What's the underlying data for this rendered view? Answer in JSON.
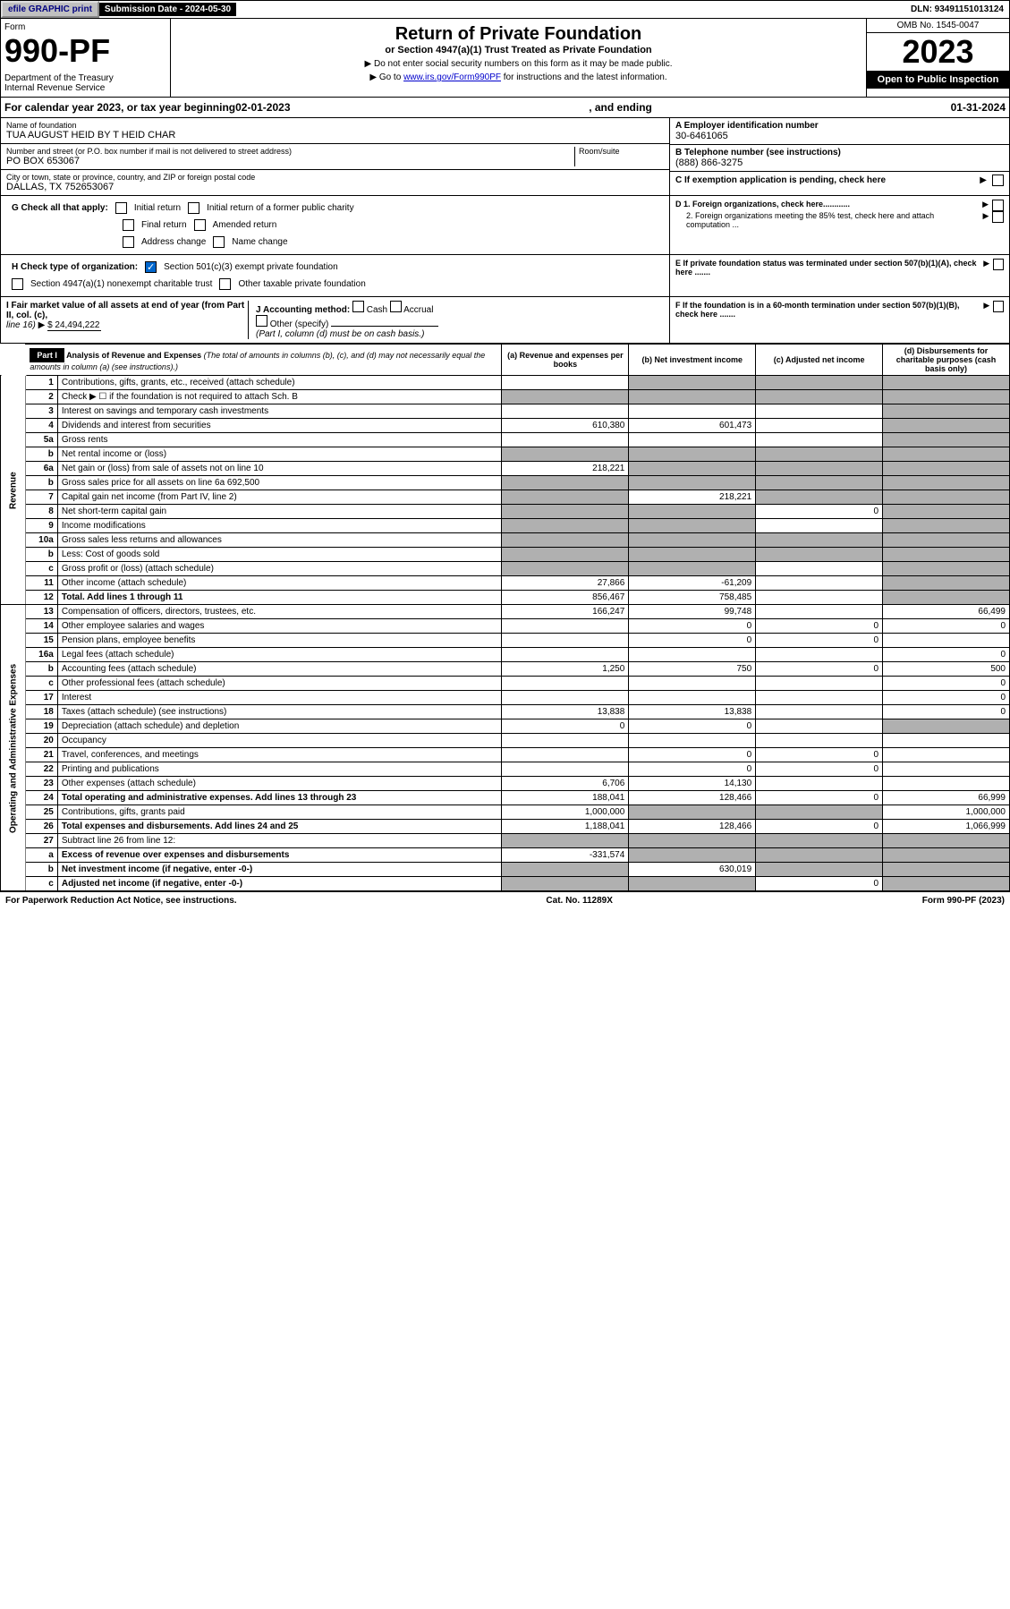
{
  "top": {
    "efile": "efile GRAPHIC print",
    "sub_date_label": "Submission Date - 2024-05-30",
    "dln": "DLN: 93491151013124"
  },
  "header": {
    "form_word": "Form",
    "form_no": "990-PF",
    "dept": "Department of the Treasury\nInternal Revenue Service",
    "title": "Return of Private Foundation",
    "subtitle": "or Section 4947(a)(1) Trust Treated as Private Foundation",
    "instr1": "Do not enter social security numbers on this form as it may be made public.",
    "instr2_pre": "Go to ",
    "instr2_link": "www.irs.gov/Form990PF",
    "instr2_post": " for instructions and the latest information.",
    "omb": "OMB No. 1545-0047",
    "year": "2023",
    "open": "Open to Public Inspection"
  },
  "cal": {
    "prefix": "For calendar year 2023, or tax year beginning ",
    "begin": "02-01-2023",
    "mid": ", and ending ",
    "end": "01-31-2024"
  },
  "org": {
    "name_label": "Name of foundation",
    "name": "TUA AUGUST HEID BY T HEID CHAR",
    "addr_label": "Number and street (or P.O. box number if mail is not delivered to street address)",
    "addr": "PO BOX 653067",
    "room_label": "Room/suite",
    "city_label": "City or town, state or province, country, and ZIP or foreign postal code",
    "city": "DALLAS, TX  752653067",
    "ein_label": "A Employer identification number",
    "ein": "30-6461065",
    "phone_label": "B Telephone number (see instructions)",
    "phone": "(888) 866-3275",
    "c_label": "C If exemption application is pending, check here",
    "d1": "D 1. Foreign organizations, check here............",
    "d2": "2. Foreign organizations meeting the 85% test, check here and attach computation ...",
    "e": "E If private foundation status was terminated under section 507(b)(1)(A), check here .......",
    "f": "F If the foundation is in a 60-month termination under section 507(b)(1)(B), check here ......."
  },
  "g": {
    "label": "G Check all that apply:",
    "opts": [
      "Initial return",
      "Final return",
      "Address change",
      "Initial return of a former public charity",
      "Amended return",
      "Name change"
    ]
  },
  "h": {
    "label": "H Check type of organization:",
    "opt1": "Section 501(c)(3) exempt private foundation",
    "opt2": "Section 4947(a)(1) nonexempt charitable trust",
    "opt3": "Other taxable private foundation"
  },
  "i": {
    "label": "I Fair market value of all assets at end of year (from Part II, col. (c),",
    "line16": "line 16)",
    "val": "$  24,494,222"
  },
  "j": {
    "label": "J Accounting method:",
    "cash": "Cash",
    "accrual": "Accrual",
    "other": "Other (specify)",
    "note": "(Part I, column (d) must be on cash basis.)"
  },
  "part1": {
    "label": "Part I",
    "title": "Analysis of Revenue and Expenses",
    "note": "(The total of amounts in columns (b), (c), and (d) may not necessarily equal the amounts in column (a) (see instructions).)",
    "cols": {
      "a": "(a) Revenue and expenses per books",
      "b": "(b) Net investment income",
      "c": "(c) Adjusted net income",
      "d": "(d) Disbursements for charitable purposes (cash basis only)"
    }
  },
  "rev_label": "Revenue",
  "exp_label": "Operating and Administrative Expenses",
  "rows": [
    {
      "n": "1",
      "d": "Contributions, gifts, grants, etc., received (attach schedule)",
      "a": "",
      "b": "",
      "c": "",
      "dd": "",
      "shade_b": true,
      "shade_c": true,
      "shade_d": true
    },
    {
      "n": "2",
      "d": "Check ▶ ☐ if the foundation is not required to attach Sch. B",
      "a": "",
      "b": "",
      "c": "",
      "dd": "",
      "shade_a": true,
      "shade_b": true,
      "shade_c": true,
      "shade_d": true
    },
    {
      "n": "3",
      "d": "Interest on savings and temporary cash investments",
      "a": "",
      "b": "",
      "c": "",
      "dd": "",
      "shade_d": true
    },
    {
      "n": "4",
      "d": "Dividends and interest from securities",
      "a": "610,380",
      "b": "601,473",
      "c": "",
      "dd": "",
      "shade_d": true
    },
    {
      "n": "5a",
      "d": "Gross rents",
      "a": "",
      "b": "",
      "c": "",
      "dd": "",
      "shade_d": true
    },
    {
      "n": "b",
      "d": "Net rental income or (loss)",
      "a": "",
      "b": "",
      "c": "",
      "dd": "",
      "shade_a": true,
      "shade_b": true,
      "shade_c": true,
      "shade_d": true
    },
    {
      "n": "6a",
      "d": "Net gain or (loss) from sale of assets not on line 10",
      "a": "218,221",
      "b": "",
      "c": "",
      "dd": "",
      "shade_b": true,
      "shade_c": true,
      "shade_d": true
    },
    {
      "n": "b",
      "d": "Gross sales price for all assets on line 6a            692,500",
      "a": "",
      "b": "",
      "c": "",
      "dd": "",
      "shade_a": true,
      "shade_b": true,
      "shade_c": true,
      "shade_d": true
    },
    {
      "n": "7",
      "d": "Capital gain net income (from Part IV, line 2)",
      "a": "",
      "b": "218,221",
      "c": "",
      "dd": "",
      "shade_a": true,
      "shade_c": true,
      "shade_d": true
    },
    {
      "n": "8",
      "d": "Net short-term capital gain",
      "a": "",
      "b": "",
      "c": "0",
      "dd": "",
      "shade_a": true,
      "shade_b": true,
      "shade_d": true
    },
    {
      "n": "9",
      "d": "Income modifications",
      "a": "",
      "b": "",
      "c": "",
      "dd": "",
      "shade_a": true,
      "shade_b": true,
      "shade_d": true
    },
    {
      "n": "10a",
      "d": "Gross sales less returns and allowances",
      "a": "",
      "b": "",
      "c": "",
      "dd": "",
      "shade_a": true,
      "shade_b": true,
      "shade_c": true,
      "shade_d": true
    },
    {
      "n": "b",
      "d": "Less: Cost of goods sold",
      "a": "",
      "b": "",
      "c": "",
      "dd": "",
      "shade_a": true,
      "shade_b": true,
      "shade_c": true,
      "shade_d": true
    },
    {
      "n": "c",
      "d": "Gross profit or (loss) (attach schedule)",
      "a": "",
      "b": "",
      "c": "",
      "dd": "",
      "shade_a": true,
      "shade_b": true,
      "shade_d": true
    },
    {
      "n": "11",
      "d": "Other income (attach schedule)",
      "a": "27,866",
      "b": "-61,209",
      "c": "",
      "dd": "",
      "shade_d": true
    },
    {
      "n": "12",
      "d": "Total. Add lines 1 through 11",
      "a": "856,467",
      "b": "758,485",
      "c": "",
      "dd": "",
      "bold": true,
      "shade_d": true
    },
    {
      "n": "13",
      "d": "Compensation of officers, directors, trustees, etc.",
      "a": "166,247",
      "b": "99,748",
      "c": "",
      "dd": "66,499"
    },
    {
      "n": "14",
      "d": "Other employee salaries and wages",
      "a": "",
      "b": "0",
      "c": "0",
      "dd": "0"
    },
    {
      "n": "15",
      "d": "Pension plans, employee benefits",
      "a": "",
      "b": "0",
      "c": "0",
      "dd": ""
    },
    {
      "n": "16a",
      "d": "Legal fees (attach schedule)",
      "a": "",
      "b": "",
      "c": "",
      "dd": "0"
    },
    {
      "n": "b",
      "d": "Accounting fees (attach schedule)",
      "a": "1,250",
      "b": "750",
      "c": "0",
      "dd": "500"
    },
    {
      "n": "c",
      "d": "Other professional fees (attach schedule)",
      "a": "",
      "b": "",
      "c": "",
      "dd": "0"
    },
    {
      "n": "17",
      "d": "Interest",
      "a": "",
      "b": "",
      "c": "",
      "dd": "0"
    },
    {
      "n": "18",
      "d": "Taxes (attach schedule) (see instructions)",
      "a": "13,838",
      "b": "13,838",
      "c": "",
      "dd": "0"
    },
    {
      "n": "19",
      "d": "Depreciation (attach schedule) and depletion",
      "a": "0",
      "b": "0",
      "c": "",
      "dd": "",
      "shade_d": true
    },
    {
      "n": "20",
      "d": "Occupancy",
      "a": "",
      "b": "",
      "c": "",
      "dd": ""
    },
    {
      "n": "21",
      "d": "Travel, conferences, and meetings",
      "a": "",
      "b": "0",
      "c": "0",
      "dd": ""
    },
    {
      "n": "22",
      "d": "Printing and publications",
      "a": "",
      "b": "0",
      "c": "0",
      "dd": ""
    },
    {
      "n": "23",
      "d": "Other expenses (attach schedule)",
      "a": "6,706",
      "b": "14,130",
      "c": "",
      "dd": ""
    },
    {
      "n": "24",
      "d": "Total operating and administrative expenses. Add lines 13 through 23",
      "a": "188,041",
      "b": "128,466",
      "c": "0",
      "dd": "66,999",
      "bold": true
    },
    {
      "n": "25",
      "d": "Contributions, gifts, grants paid",
      "a": "1,000,000",
      "b": "",
      "c": "",
      "dd": "1,000,000",
      "shade_b": true,
      "shade_c": true
    },
    {
      "n": "26",
      "d": "Total expenses and disbursements. Add lines 24 and 25",
      "a": "1,188,041",
      "b": "128,466",
      "c": "0",
      "dd": "1,066,999",
      "bold": true
    },
    {
      "n": "27",
      "d": "Subtract line 26 from line 12:",
      "a": "",
      "b": "",
      "c": "",
      "dd": "",
      "shade_a": true,
      "shade_b": true,
      "shade_c": true,
      "shade_d": true
    },
    {
      "n": "a",
      "d": "Excess of revenue over expenses and disbursements",
      "a": "-331,574",
      "b": "",
      "c": "",
      "dd": "",
      "bold": true,
      "shade_b": true,
      "shade_c": true,
      "shade_d": true
    },
    {
      "n": "b",
      "d": "Net investment income (if negative, enter -0-)",
      "a": "",
      "b": "630,019",
      "c": "",
      "dd": "",
      "bold": true,
      "shade_a": true,
      "shade_c": true,
      "shade_d": true
    },
    {
      "n": "c",
      "d": "Adjusted net income (if negative, enter -0-)",
      "a": "",
      "b": "",
      "c": "0",
      "dd": "",
      "bold": true,
      "shade_a": true,
      "shade_b": true,
      "shade_d": true
    }
  ],
  "footer": {
    "left": "For Paperwork Reduction Act Notice, see instructions.",
    "mid": "Cat. No. 11289X",
    "right": "Form 990-PF (2023)"
  }
}
